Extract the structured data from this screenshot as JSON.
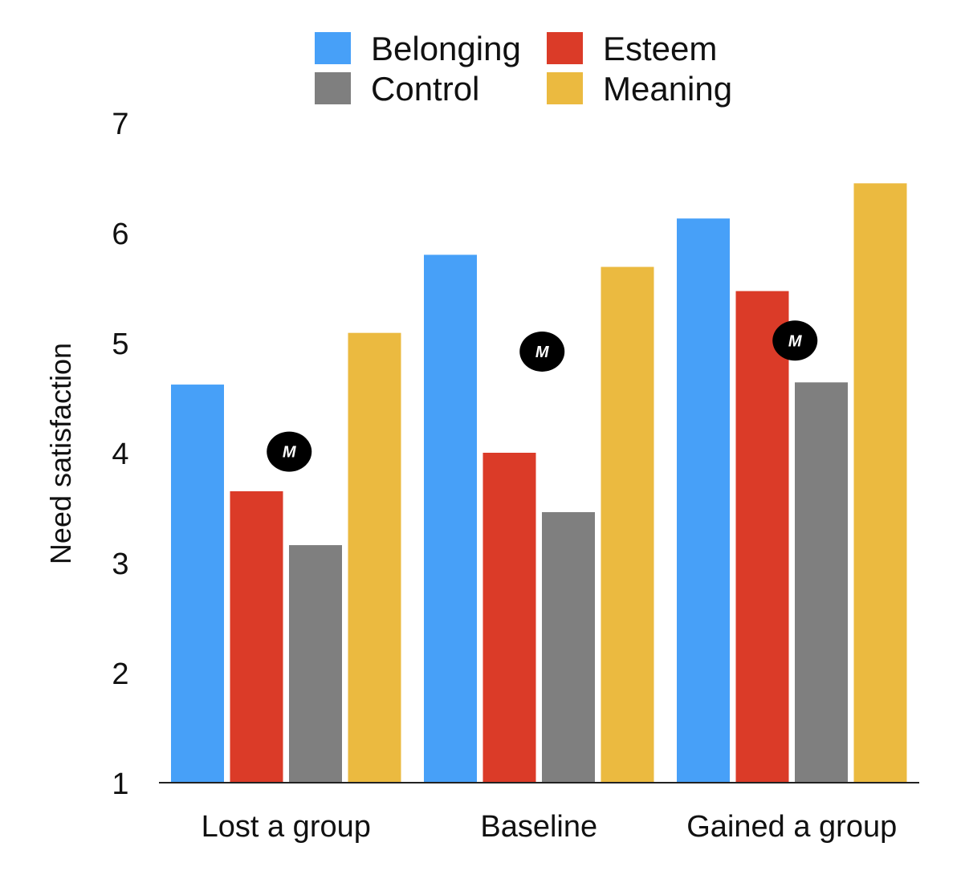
{
  "chart_data": {
    "type": "bar",
    "title": "",
    "xlabel": "",
    "ylabel": "Need satisfaction",
    "ylim": [
      1,
      7
    ],
    "yticks": [
      1,
      2,
      3,
      4,
      5,
      6,
      7
    ],
    "grid": false,
    "legend_position": "top",
    "categories": [
      "Lost a group",
      "Baseline",
      "Gained a group"
    ],
    "series": [
      {
        "name": "Belonging",
        "color": "#47A0F8",
        "values": [
          4.62,
          5.8,
          6.13
        ]
      },
      {
        "name": "Esteem",
        "color": "#DB3B28",
        "values": [
          3.65,
          4.0,
          5.47
        ]
      },
      {
        "name": "Control",
        "color": "#7F7F7F",
        "values": [
          3.16,
          3.46,
          4.64
        ]
      },
      {
        "name": "Meaning",
        "color": "#EBBA40",
        "values": [
          5.09,
          5.69,
          6.45
        ]
      }
    ],
    "legend_order": [
      "Belonging",
      "Esteem",
      "Control",
      "Meaning"
    ],
    "annotations": [
      {
        "category": "Lost a group",
        "text": "M",
        "y": 4.01
      },
      {
        "category": "Baseline",
        "text": "M",
        "y": 4.92
      },
      {
        "category": "Gained a group",
        "text": "M",
        "y": 5.02
      }
    ]
  }
}
